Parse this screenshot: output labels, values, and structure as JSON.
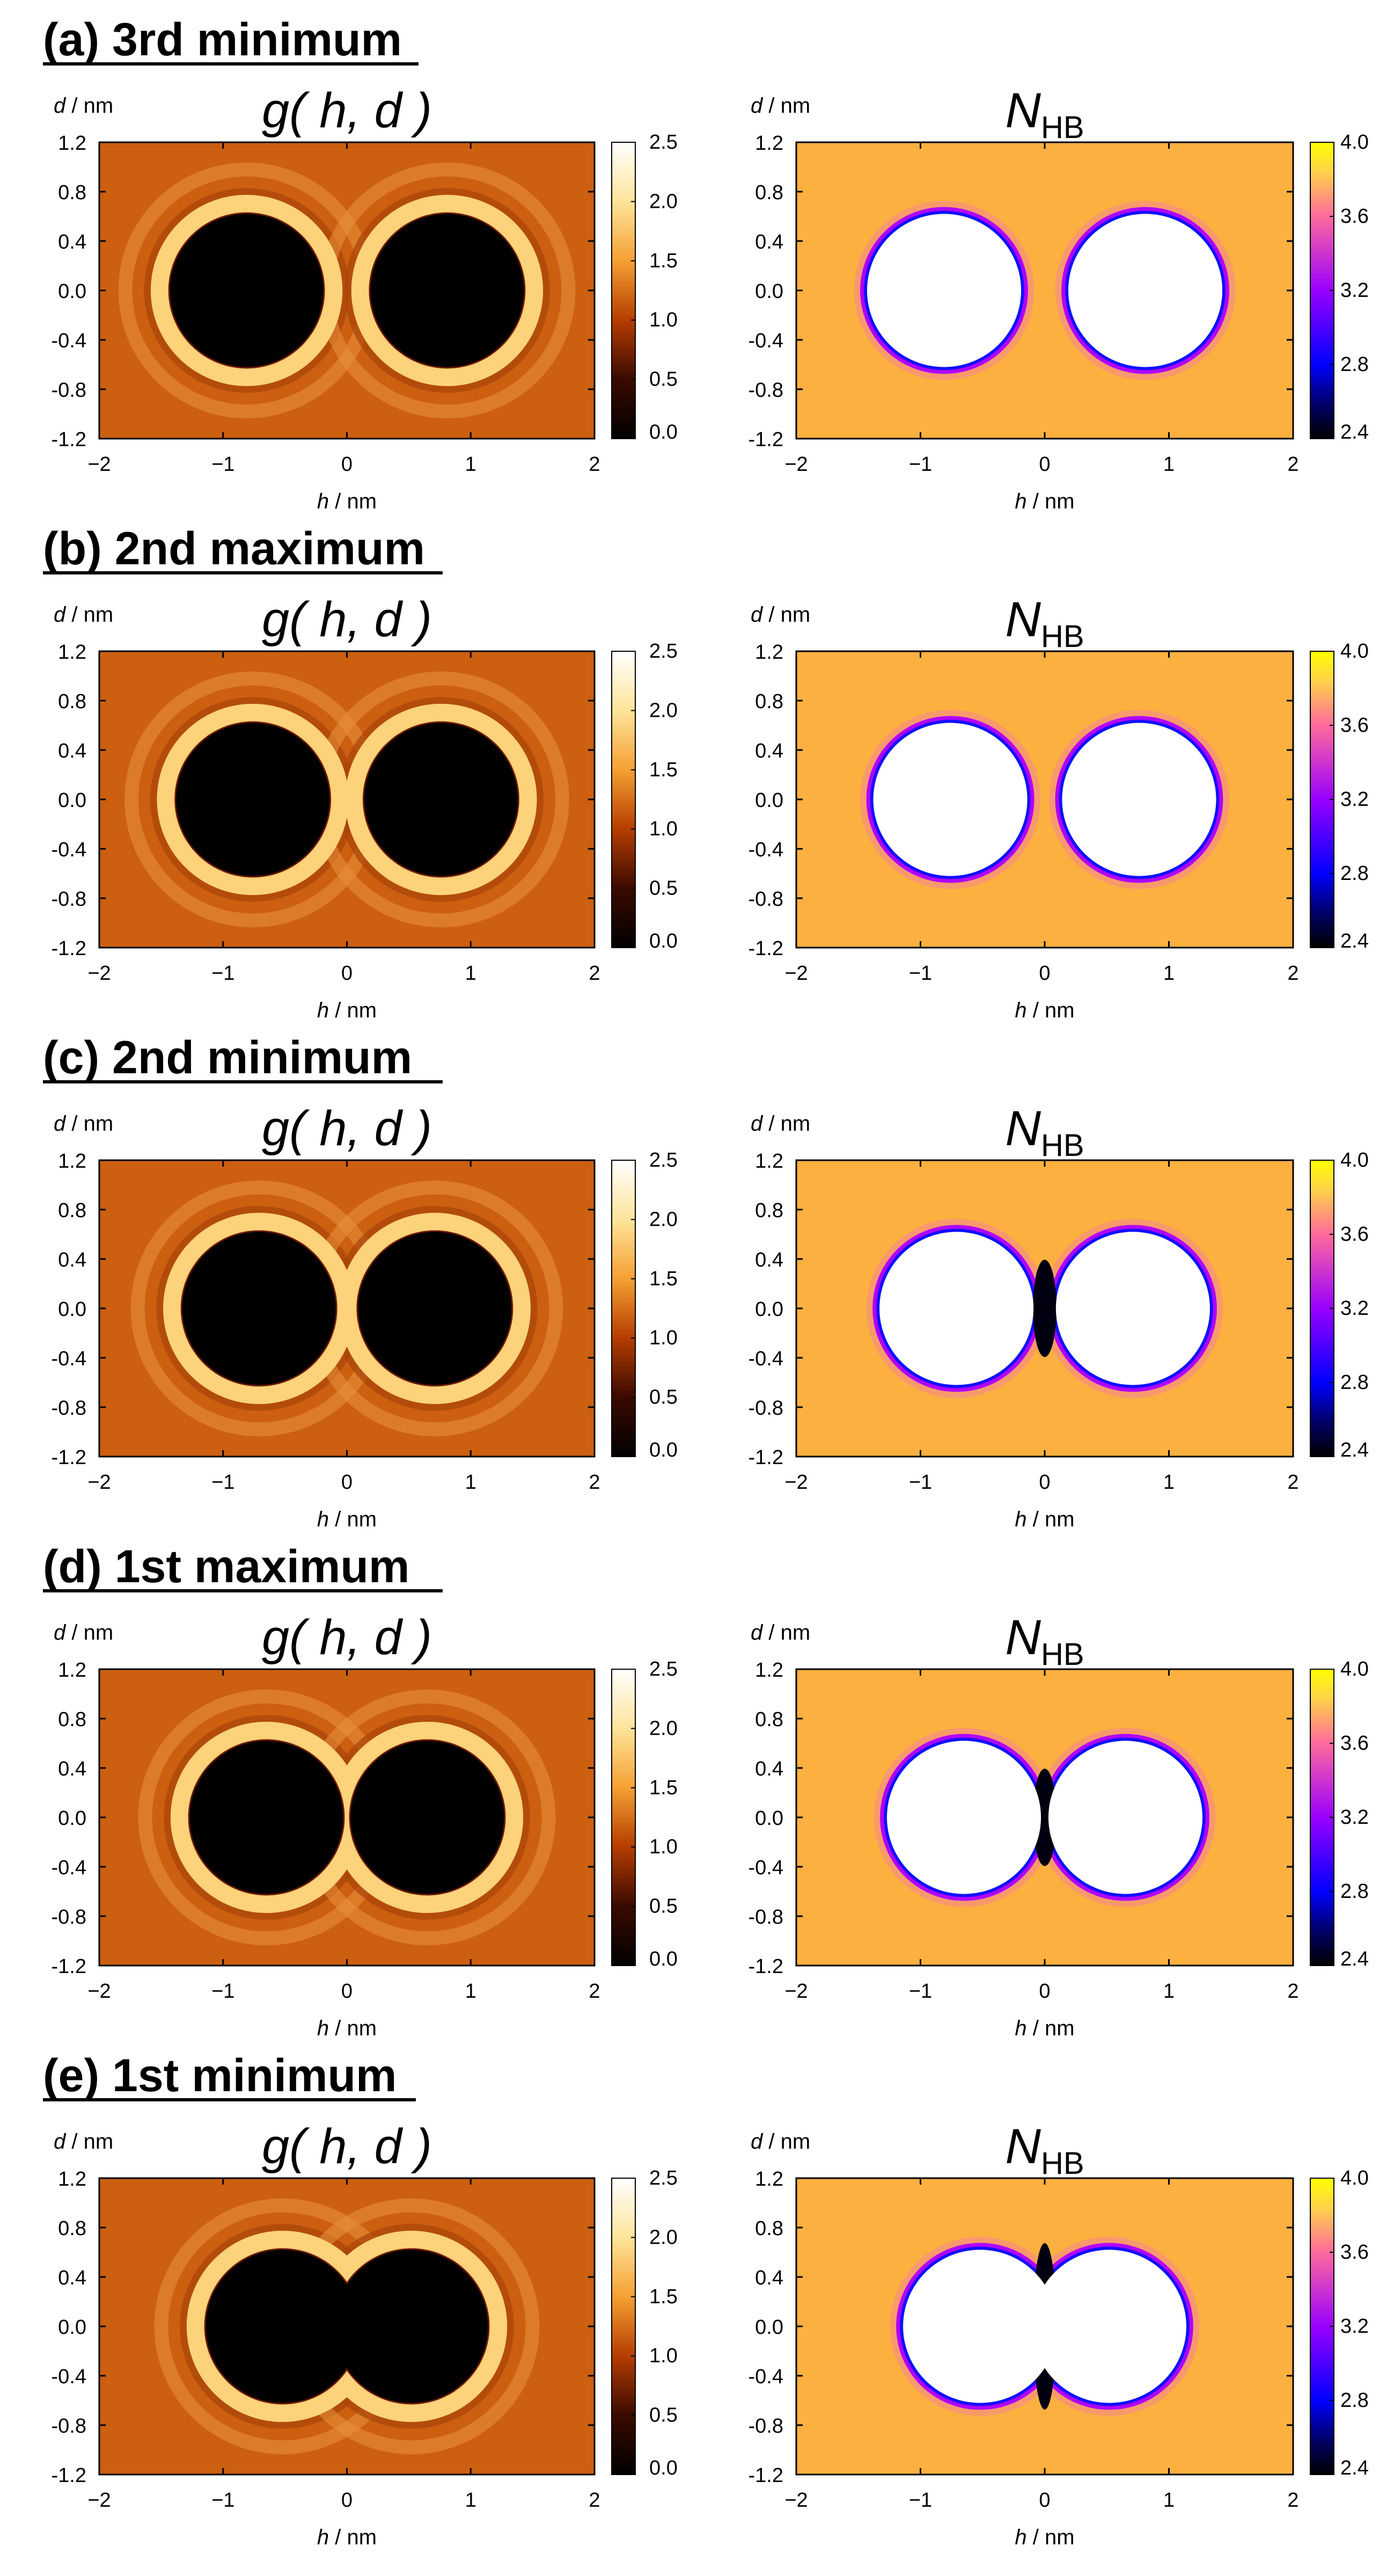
{
  "chart_data": {
    "type": "heatmap",
    "grid": false,
    "panels": [
      {
        "label": "(a) 3rd minimum",
        "separation": 1.62
      },
      {
        "label": "(b) 2nd maximum",
        "separation": 1.52
      },
      {
        "label": "(c) 2nd minimum",
        "separation": 1.42
      },
      {
        "label": "(d) 1st maximum",
        "separation": 1.3
      },
      {
        "label": "(e) 1st minimum",
        "separation": 1.04
      }
    ],
    "solute_radius": 0.62,
    "maps": [
      {
        "title_main": "g( h, d )",
        "title_sub": "",
        "colormap": "g",
        "colorbar_ticks": [
          "2.5",
          "2.0",
          "1.5",
          "1.0",
          "0.5",
          "0.0"
        ],
        "colorbar_range": [
          0.0,
          2.5
        ]
      },
      {
        "title_main": "N",
        "title_sub": "HB",
        "colormap": "nhb",
        "colorbar_ticks": [
          "4.0",
          "3.6",
          "3.2",
          "2.8",
          "2.4"
        ],
        "colorbar_range": [
          2.4,
          4.0
        ]
      }
    ],
    "xlabel_var": "h",
    "xlabel_unit": " / nm",
    "ylabel_var": "d",
    "ylabel_unit": " / nm",
    "xlim": [
      -2,
      2
    ],
    "ylim": [
      -1.2,
      1.2
    ],
    "xticks": [
      "−2",
      "−1",
      "0",
      "1",
      "2"
    ],
    "yticks": [
      "1.2",
      "0.8",
      "0.4",
      "0.0",
      "-0.4",
      "-0.8",
      "-1.2"
    ]
  }
}
